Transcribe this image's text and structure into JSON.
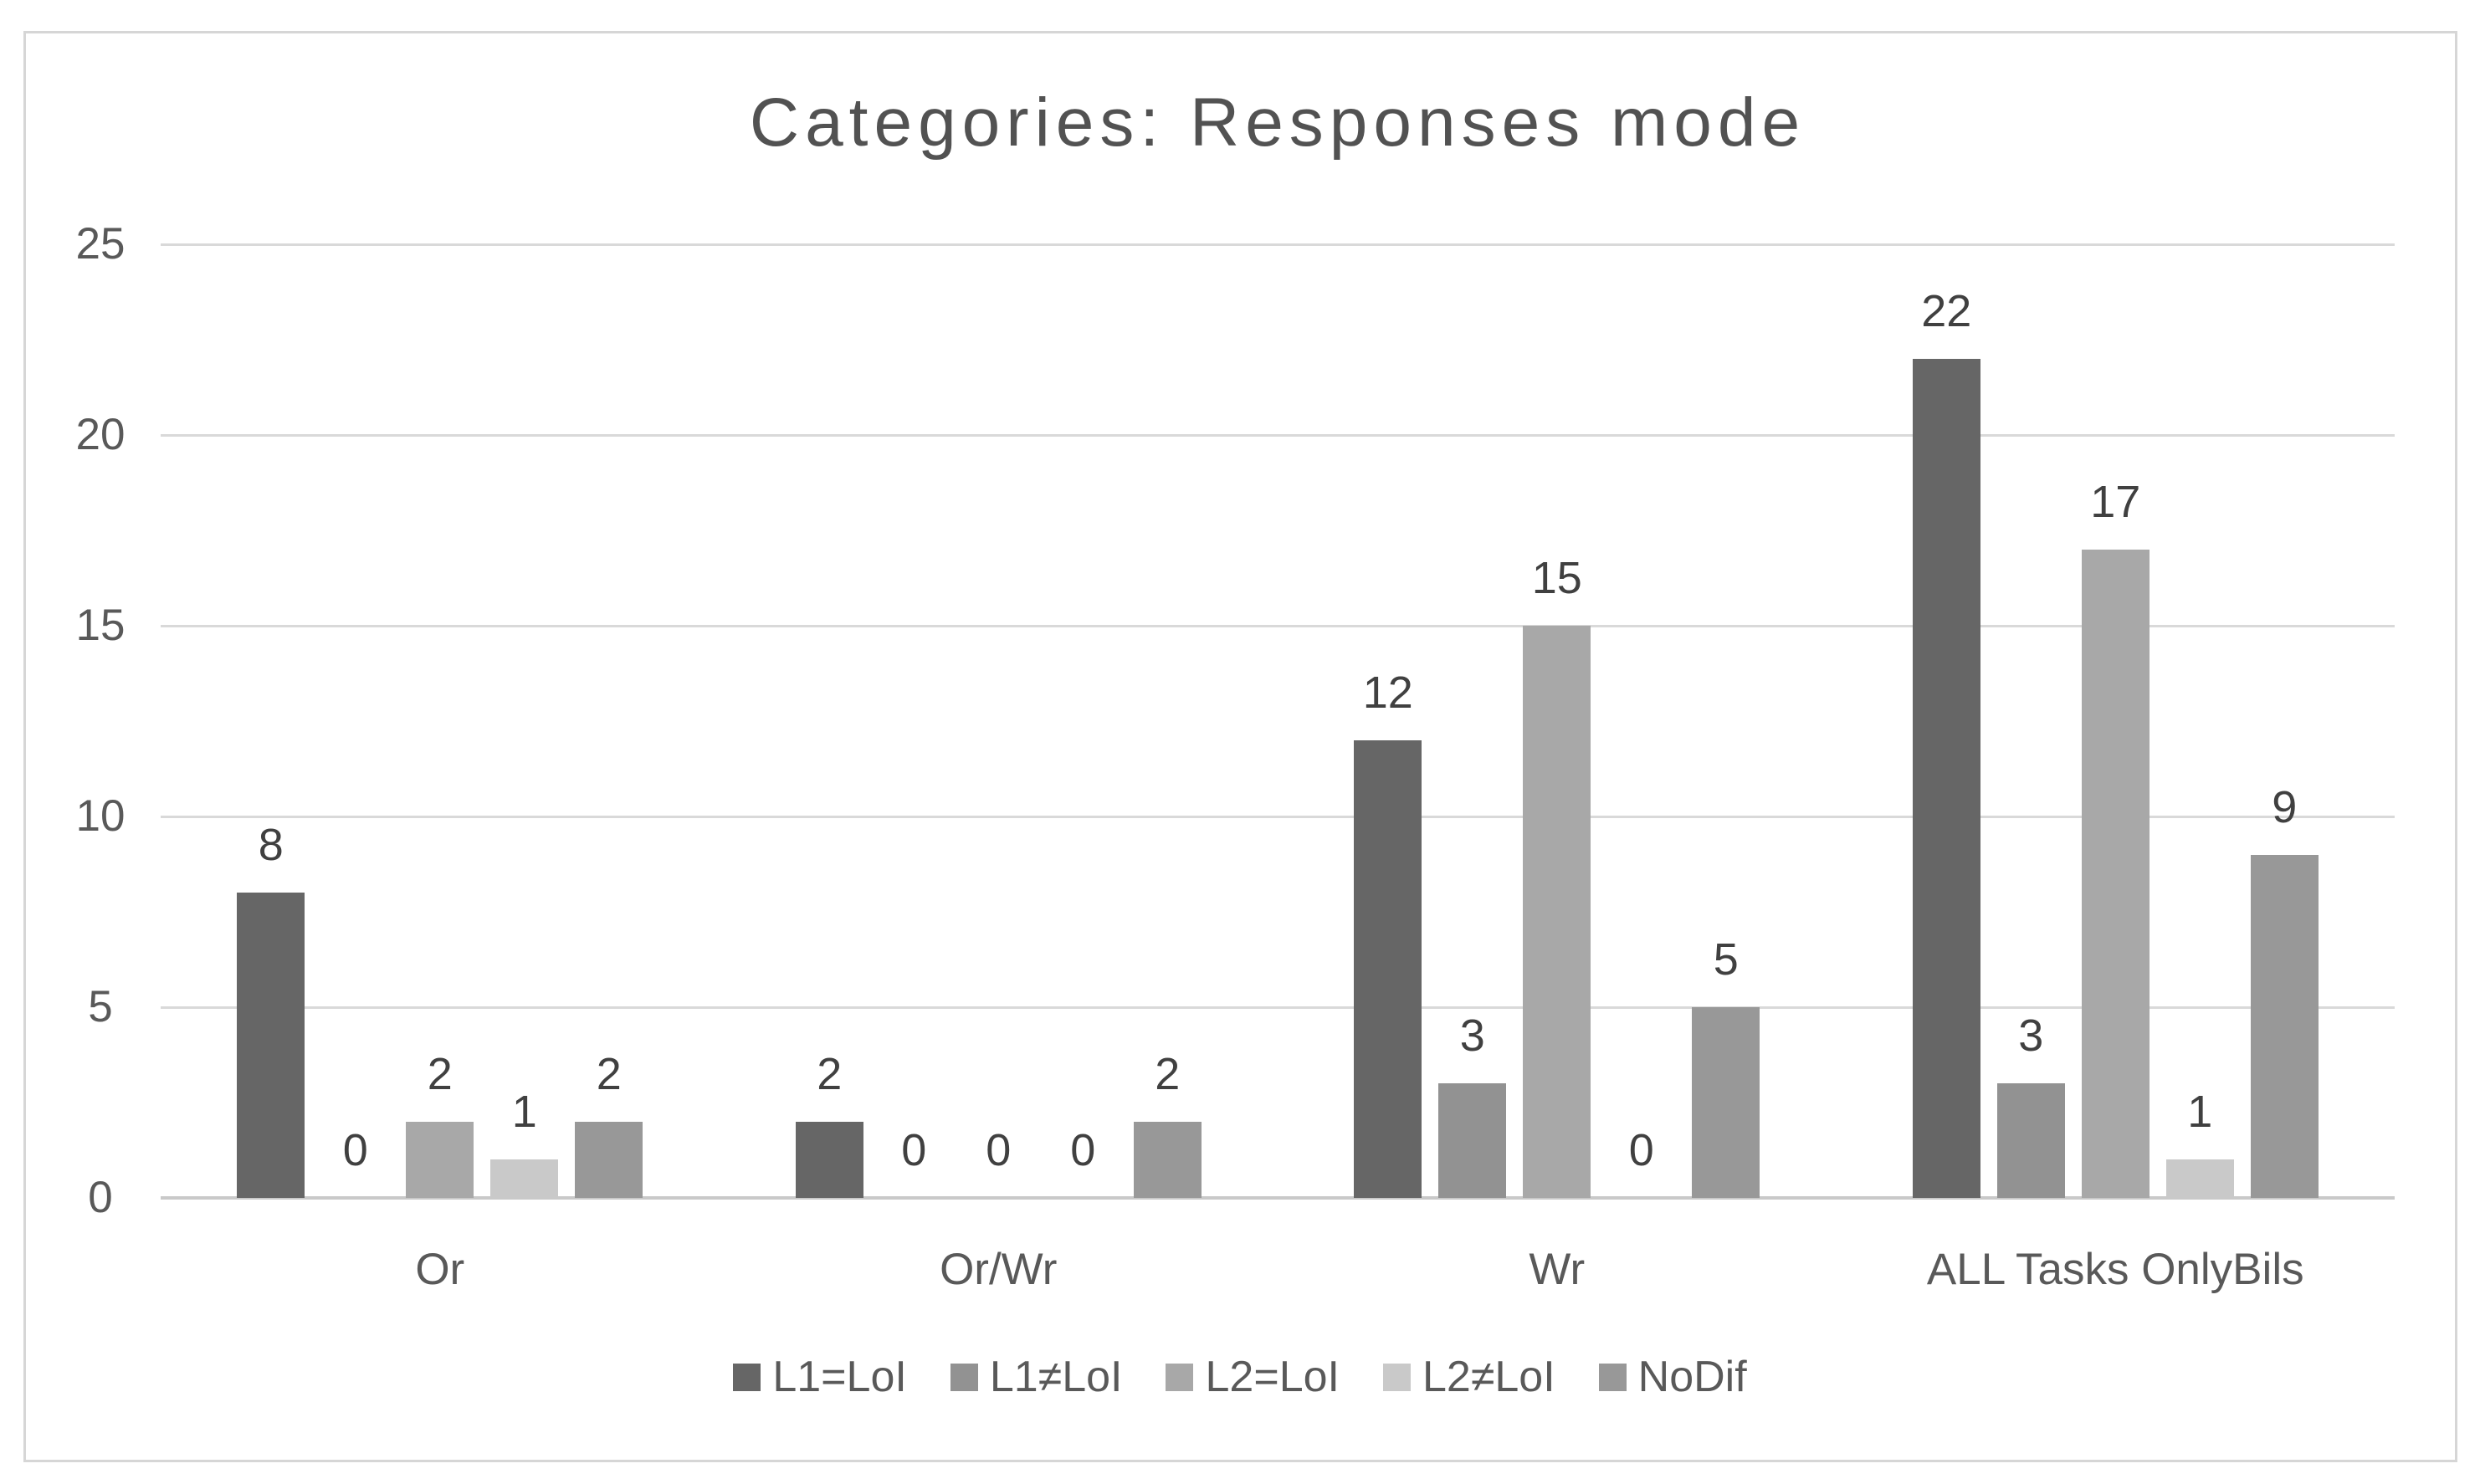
{
  "chart_data": {
    "type": "bar",
    "title": "Categories: Responses mode",
    "categories": [
      "Or",
      "Or/Wr",
      "Wr",
      "ALL Tasks OnlyBils"
    ],
    "series": [
      {
        "name": "L1=LoI",
        "color": "#666666",
        "values": [
          8,
          2,
          12,
          22
        ]
      },
      {
        "name": "L1≠LoI",
        "color": "#929292",
        "values": [
          0,
          0,
          3,
          3
        ]
      },
      {
        "name": "L2=LoI",
        "color": "#a8a8a8",
        "values": [
          2,
          0,
          15,
          17
        ]
      },
      {
        "name": "L2≠LoI",
        "color": "#c9c9c9",
        "values": [
          1,
          0,
          0,
          1
        ]
      },
      {
        "name": "NoDif",
        "color": "#989898",
        "values": [
          2,
          2,
          5,
          9
        ]
      }
    ],
    "y_ticks": [
      0,
      5,
      10,
      15,
      20,
      25
    ],
    "ylim": [
      0,
      25
    ],
    "grid": true,
    "data_labels": true,
    "legend_position": "bottom",
    "colors": {
      "gridline": "#d9d9d9",
      "axis_line": "#c9c9c9",
      "tick_text": "#595959",
      "title_text": "#525252",
      "data_label_text": "#404040"
    }
  }
}
